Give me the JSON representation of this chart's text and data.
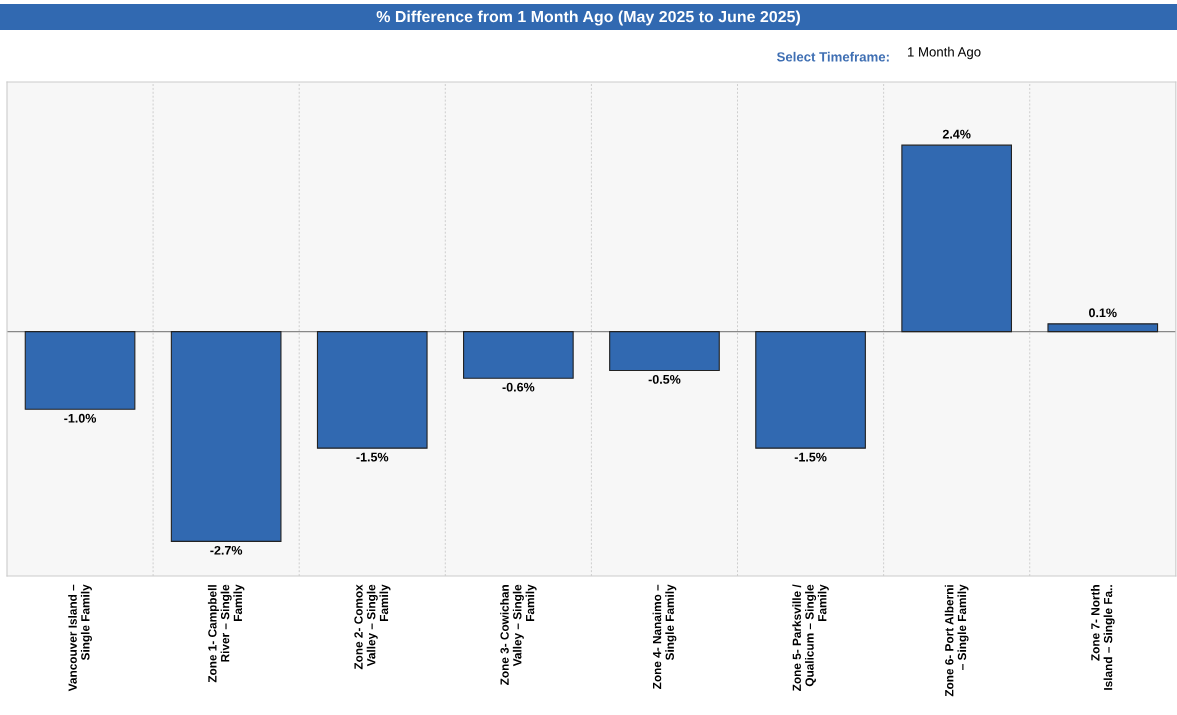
{
  "chart_data": {
    "type": "bar",
    "title": "% Difference from 1 Month Ago (May 2025 to June 2025)",
    "categories": [
      "Vancouver Island –\nSingle Family",
      "Zone 1- Campbell\nRiver – Single\nFamily",
      "Zone 2- Comox\nValley – Single\nFamily",
      "Zone 3- Cowichan\nValley – Single\nFamily",
      "Zone 4- Nanaimo –\nSingle Family",
      "Zone 5- Parksville /\nQualicum – Single\nFamily",
      "Zone 6- Port Alberni\n– Single Family",
      "Zone 7- North\nIsland – Single Fa.."
    ],
    "values": [
      -1.0,
      -2.7,
      -1.5,
      -0.6,
      -0.5,
      -1.5,
      2.4,
      0.1
    ],
    "value_labels": [
      "-1.0%",
      "-2.7%",
      "-1.5%",
      "-0.6%",
      "-0.5%",
      "-1.5%",
      "2.4%",
      "0.1%"
    ],
    "color": "#3169b1",
    "grid": "x",
    "legend": false,
    "annotations": [
      "Select Timeframe:",
      "1 Month Ago"
    ]
  }
}
